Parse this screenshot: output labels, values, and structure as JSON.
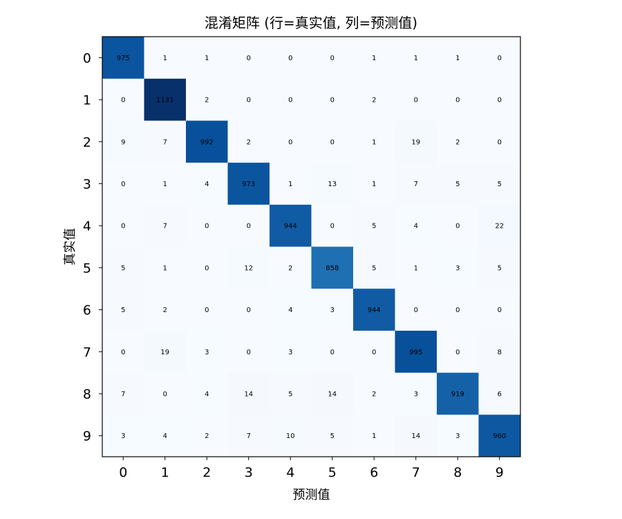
{
  "chart_data": {
    "type": "heatmap",
    "title": "混淆矩阵 (行=真实值, 列=预测值)",
    "xlabel": "预测值",
    "ylabel": "真实值",
    "x_ticks": [
      "0",
      "1",
      "2",
      "3",
      "4",
      "5",
      "6",
      "7",
      "8",
      "9"
    ],
    "y_ticks": [
      "0",
      "1",
      "2",
      "3",
      "4",
      "5",
      "6",
      "7",
      "8",
      "9"
    ],
    "colormap": "Blues",
    "color_low": "#f7fbff",
    "color_high": "#08306b",
    "vmin": 0,
    "vmax": 1131,
    "matrix": [
      [
        975,
        1,
        1,
        0,
        0,
        0,
        1,
        1,
        1,
        0
      ],
      [
        0,
        1131,
        2,
        0,
        0,
        0,
        2,
        0,
        0,
        0
      ],
      [
        9,
        7,
        992,
        2,
        0,
        0,
        1,
        19,
        2,
        0
      ],
      [
        0,
        1,
        4,
        973,
        1,
        13,
        1,
        7,
        5,
        5
      ],
      [
        0,
        7,
        0,
        0,
        944,
        0,
        5,
        4,
        0,
        22
      ],
      [
        5,
        1,
        0,
        12,
        2,
        858,
        5,
        1,
        3,
        5
      ],
      [
        5,
        2,
        0,
        0,
        4,
        3,
        944,
        0,
        0,
        0
      ],
      [
        0,
        19,
        3,
        0,
        3,
        0,
        0,
        995,
        0,
        8
      ],
      [
        7,
        0,
        4,
        14,
        5,
        14,
        2,
        3,
        919,
        6
      ],
      [
        3,
        4,
        2,
        7,
        10,
        5,
        1,
        14,
        3,
        960
      ]
    ]
  }
}
